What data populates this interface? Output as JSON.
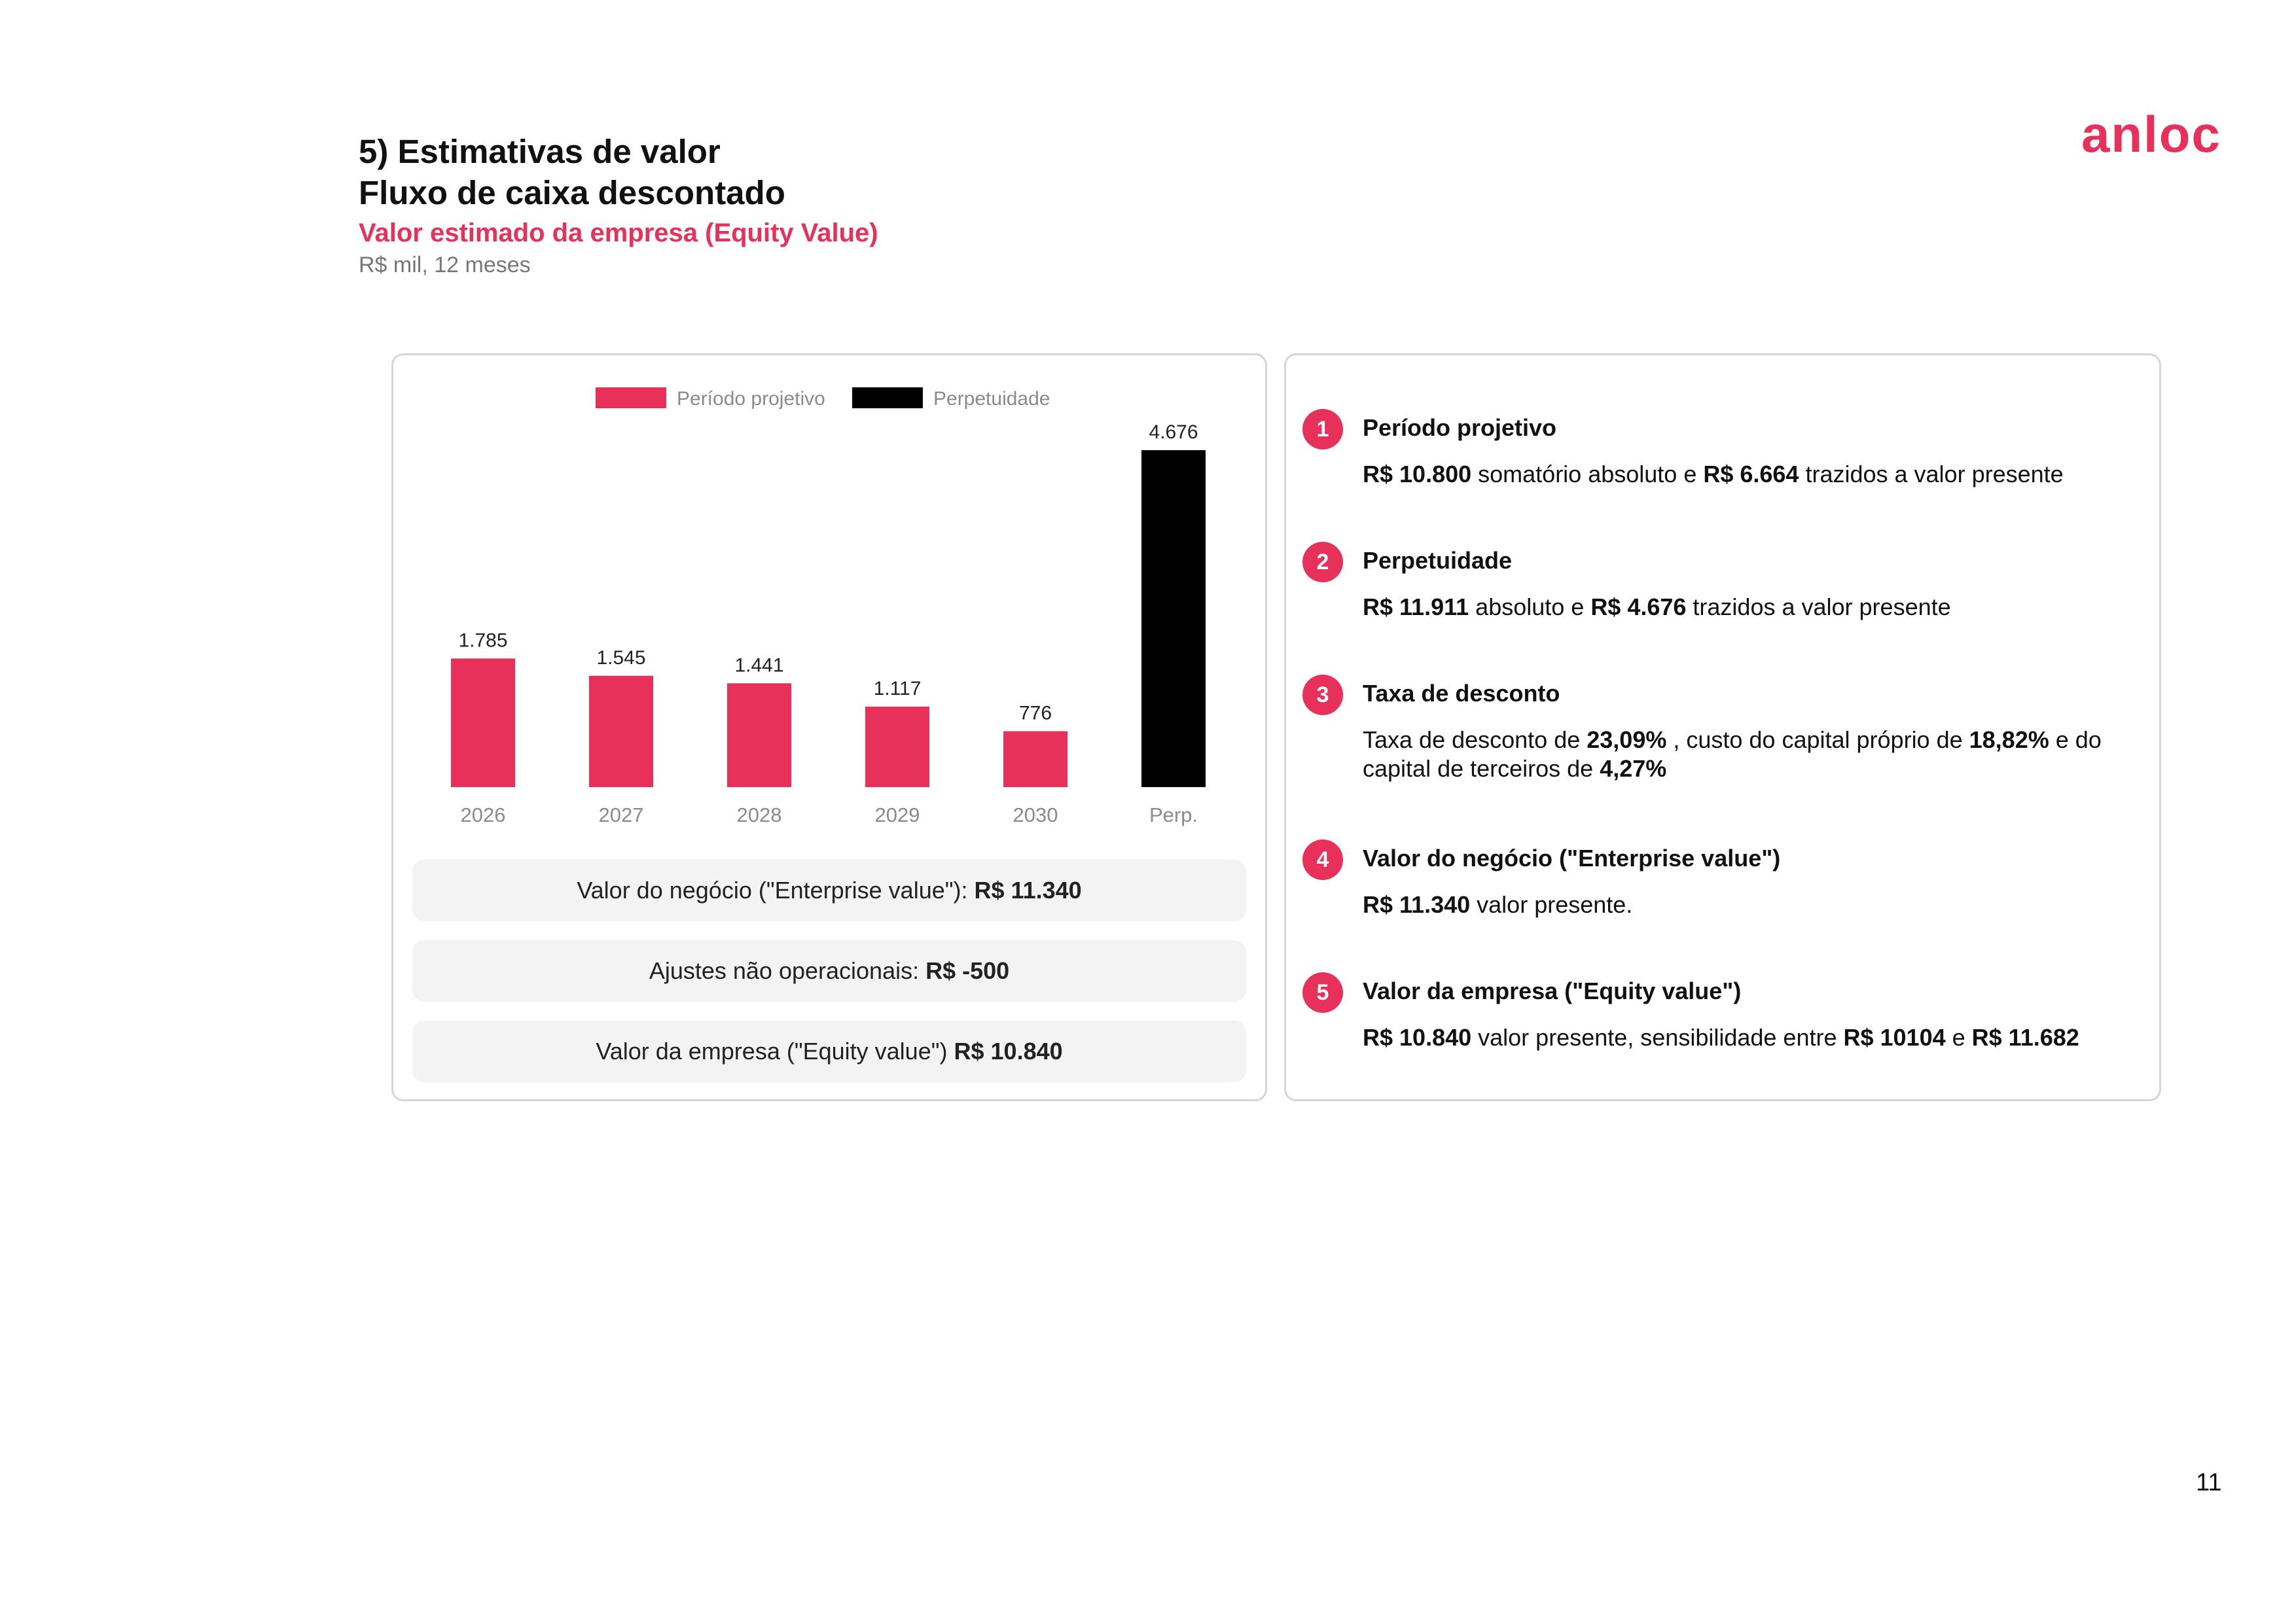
{
  "header": {
    "title_line1": "5) Estimativas de valor",
    "title_line2": "Fluxo de caixa descontado",
    "subtitle": "Valor estimado da empresa (Equity Value)",
    "units": "R$ mil, 12 meses",
    "logo_text": "anloc",
    "page_number": "11"
  },
  "colors": {
    "accent": "#e8315a",
    "perpetuity": "#000000"
  },
  "chart_data": {
    "type": "bar",
    "categories": [
      "2026",
      "2027",
      "2028",
      "2029",
      "2030",
      "Perp."
    ],
    "series": [
      {
        "name": "Período projetivo",
        "values": [
          1785,
          1545,
          1441,
          1117,
          776,
          null
        ],
        "color": "#e8315a"
      },
      {
        "name": "Perpetuidade",
        "values": [
          null,
          null,
          null,
          null,
          null,
          4676
        ],
        "color": "#000000"
      }
    ],
    "data_labels": [
      "1.785",
      "1.545",
      "1.441",
      "1.117",
      "776",
      "4.676"
    ],
    "legend": "top",
    "grid": false
  },
  "summary": [
    {
      "label": "Valor do negócio (\"Enterprise value\"):",
      "value": "R$ 11.340"
    },
    {
      "label": "Ajustes não operacionais:",
      "value": "R$ -500"
    },
    {
      "label": "Valor da empresa (\"Equity value\")",
      "value": "R$ 10.840"
    }
  ],
  "notes": [
    {
      "number": "1",
      "title": "Período projetivo",
      "body": [
        {
          "t": "R$ 10.800",
          "b": true
        },
        {
          "t": " somatório absoluto e "
        },
        {
          "t": "R$ 6.664",
          "b": true
        },
        {
          "t": " trazidos a valor presente"
        }
      ]
    },
    {
      "number": "2",
      "title": "Perpetuidade",
      "body": [
        {
          "t": "R$ 11.911",
          "b": true
        },
        {
          "t": " absoluto e "
        },
        {
          "t": "R$ 4.676",
          "b": true
        },
        {
          "t": " trazidos a valor presente"
        }
      ]
    },
    {
      "number": "3",
      "title": "Taxa de desconto",
      "body": [
        {
          "t": "Taxa de desconto de "
        },
        {
          "t": "23,09%",
          "b": true
        },
        {
          "t": " , custo do capital próprio de "
        },
        {
          "t": "18,82%",
          "b": true
        },
        {
          "t": " e do capital de terceiros de "
        },
        {
          "t": "4,27%",
          "b": true
        }
      ]
    },
    {
      "number": "4",
      "title": "Valor do negócio (\"Enterprise value\")",
      "body": [
        {
          "t": "R$ 11.340",
          "b": true
        },
        {
          "t": " valor presente."
        }
      ]
    },
    {
      "number": "5",
      "title": "Valor da empresa (\"Equity value\")",
      "body": [
        {
          "t": "R$ 10.840",
          "b": true
        },
        {
          "t": " valor presente, sensibilidade entre "
        },
        {
          "t": "R$ 10104",
          "b": true
        },
        {
          "t": " e "
        },
        {
          "t": "R$ 11.682",
          "b": true
        }
      ]
    }
  ]
}
